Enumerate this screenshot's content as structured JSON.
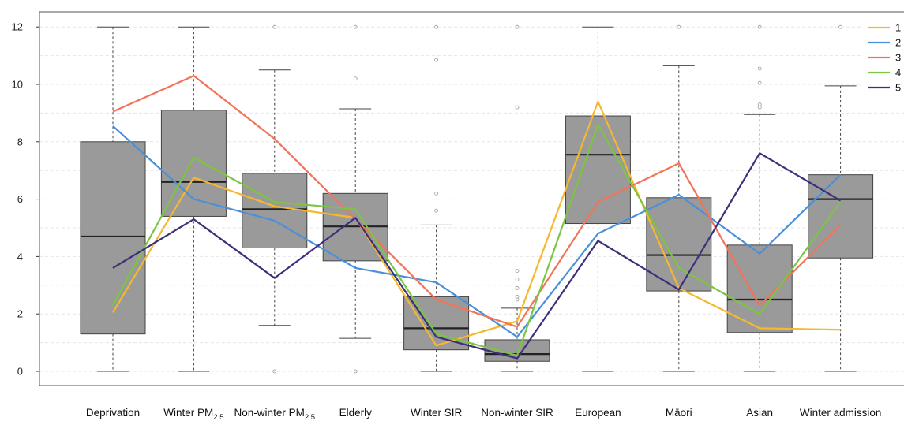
{
  "chart_data": {
    "type": "box",
    "title": "",
    "xlabel": "",
    "ylabel": "",
    "ylim": [
      0,
      12
    ],
    "yticks": [
      0,
      2,
      4,
      6,
      8,
      10,
      12
    ],
    "grid": true,
    "legend_position": "top-right",
    "categories": [
      {
        "label": "Deprivation"
      },
      {
        "label": "Winter PM",
        "subscript": "2.5"
      },
      {
        "label": "Non-winter PM",
        "subscript": "2.5"
      },
      {
        "label": "Elderly"
      },
      {
        "label": "Winter SIR"
      },
      {
        "label": "Non-winter SIR"
      },
      {
        "label": "European"
      },
      {
        "label": "Māori"
      },
      {
        "label": "Asian"
      },
      {
        "label": "Winter admission"
      }
    ],
    "boxes": [
      {
        "whisker_low": 0,
        "q1": 1.3,
        "median": 4.7,
        "q3": 8.0,
        "whisker_high": 12,
        "outliers": []
      },
      {
        "whisker_low": 0,
        "q1": 5.4,
        "median": 6.6,
        "q3": 9.1,
        "whisker_high": 12,
        "outliers": []
      },
      {
        "whisker_low": 1.6,
        "q1": 4.3,
        "median": 5.65,
        "q3": 6.9,
        "whisker_high": 10.5,
        "outliers": [
          0,
          12
        ]
      },
      {
        "whisker_low": 1.15,
        "q1": 3.85,
        "median": 5.05,
        "q3": 6.2,
        "whisker_high": 9.15,
        "outliers": [
          0,
          10.2,
          12
        ]
      },
      {
        "whisker_low": 0,
        "q1": 0.75,
        "median": 1.5,
        "q3": 2.6,
        "whisker_high": 5.1,
        "outliers": [
          5.6,
          6.2,
          10.85,
          12
        ]
      },
      {
        "whisker_low": 0,
        "q1": 0.35,
        "median": 0.6,
        "q3": 1.1,
        "whisker_high": 2.2,
        "outliers": [
          2.5,
          2.6,
          2.9,
          3.2,
          3.5,
          9.2,
          12
        ]
      },
      {
        "whisker_low": 0,
        "q1": 5.15,
        "median": 7.55,
        "q3": 8.9,
        "whisker_high": 12,
        "outliers": []
      },
      {
        "whisker_low": 0,
        "q1": 2.8,
        "median": 4.05,
        "q3": 6.05,
        "whisker_high": 10.65,
        "outliers": [
          12
        ]
      },
      {
        "whisker_low": 0,
        "q1": 1.35,
        "median": 2.5,
        "q3": 4.4,
        "whisker_high": 8.95,
        "outliers": [
          9.2,
          9.3,
          10.05,
          10.55,
          12
        ]
      },
      {
        "whisker_low": 0,
        "q1": 3.95,
        "median": 6.0,
        "q3": 6.85,
        "whisker_high": 9.95,
        "outliers": [
          12
        ]
      }
    ],
    "series": [
      {
        "name": "1",
        "color": "#f5b82e",
        "values": [
          2.05,
          6.75,
          5.75,
          5.35,
          0.9,
          1.75,
          9.4,
          2.9,
          1.5,
          1.45
        ]
      },
      {
        "name": "2",
        "color": "#4a90d9",
        "values": [
          8.55,
          6.0,
          5.25,
          3.6,
          3.1,
          1.2,
          4.8,
          6.15,
          4.1,
          6.85
        ]
      },
      {
        "name": "3",
        "color": "#f47358",
        "values": [
          9.05,
          10.3,
          8.1,
          5.3,
          2.5,
          1.55,
          5.9,
          7.25,
          2.3,
          5.1
        ]
      },
      {
        "name": "4",
        "color": "#7dc443",
        "values": [
          2.3,
          7.45,
          5.9,
          5.65,
          1.3,
          0.55,
          8.6,
          3.6,
          2.0,
          5.9
        ]
      },
      {
        "name": "5",
        "color": "#3e2f7a",
        "values": [
          3.6,
          5.3,
          3.25,
          5.35,
          1.2,
          0.45,
          4.55,
          2.85,
          7.6,
          5.95
        ]
      }
    ]
  }
}
